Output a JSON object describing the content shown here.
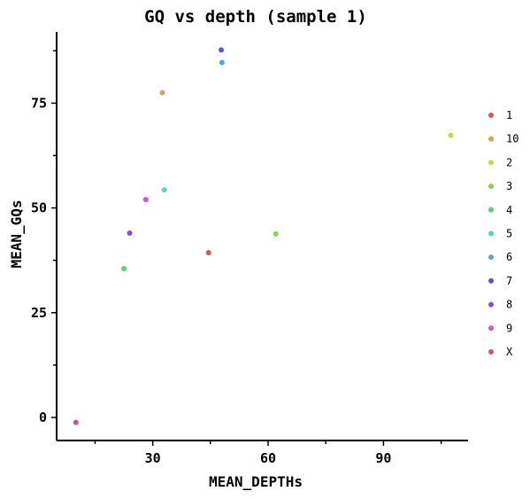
{
  "chart_data": {
    "type": "scatter",
    "title": "GQ vs depth (sample 1)",
    "xlabel": "MEAN_DEPTHs",
    "ylabel": "MEAN_GQs",
    "xlim": [
      5,
      112
    ],
    "ylim": [
      -5.5,
      92
    ],
    "x_ticks": [
      30,
      60,
      90
    ],
    "y_ticks": [
      0,
      25,
      50,
      75
    ],
    "x_minor_ticks": [
      15,
      45,
      75,
      105
    ],
    "y_minor_ticks": [
      12.5,
      37.5,
      62.5,
      87.5
    ],
    "grid": false,
    "legend_position": "right",
    "series": [
      {
        "name": "1",
        "color": "#d9564e",
        "points": [
          {
            "x": 44.5,
            "y": 39.3
          }
        ]
      },
      {
        "name": "10",
        "color": "#d9a04e",
        "points": [
          {
            "x": 32.5,
            "y": 77.5
          }
        ]
      },
      {
        "name": "2",
        "color": "#c4d93a",
        "points": [
          {
            "x": 107.5,
            "y": 67.3
          }
        ]
      },
      {
        "name": "3",
        "color": "#7fd94e",
        "points": [
          {
            "x": 62.0,
            "y": 43.8
          }
        ]
      },
      {
        "name": "4",
        "color": "#4ed96b",
        "points": [
          {
            "x": 22.5,
            "y": 35.5
          }
        ]
      },
      {
        "name": "5",
        "color": "#4ed9c4",
        "points": [
          {
            "x": 33.0,
            "y": 54.3
          }
        ]
      },
      {
        "name": "6",
        "color": "#4ea6d9",
        "points": [
          {
            "x": 48.0,
            "y": 84.7
          }
        ]
      },
      {
        "name": "7",
        "color": "#4e5cd9",
        "points": [
          {
            "x": 47.8,
            "y": 87.7
          }
        ]
      },
      {
        "name": "8",
        "color": "#8a4ed9",
        "points": [
          {
            "x": 24.0,
            "y": 44.0
          }
        ]
      },
      {
        "name": "9",
        "color": "#d94ed9",
        "points": [
          {
            "x": 28.2,
            "y": 52.0
          }
        ]
      },
      {
        "name": "X",
        "color": "#d94e8f",
        "points": [
          {
            "x": 10.0,
            "y": -1.2
          }
        ]
      }
    ]
  }
}
